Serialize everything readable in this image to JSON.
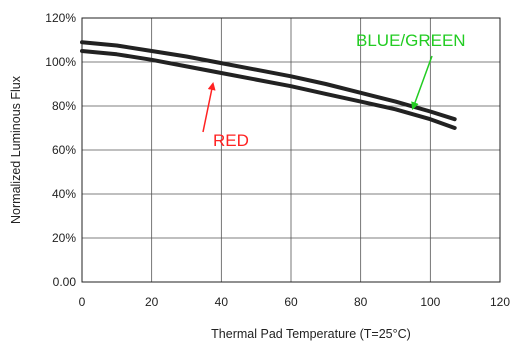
{
  "chart_data": {
    "type": "line",
    "xlabel": "Thermal Pad Temperature (T=25°C)",
    "ylabel": "Normalized Luminous Flux",
    "xlim": [
      0,
      120
    ],
    "ylim": [
      0,
      120
    ],
    "x_ticks": [
      "0",
      "20",
      "40",
      "60",
      "80",
      "100",
      "120"
    ],
    "y_ticks": [
      "0.00",
      "20%",
      "40%",
      "60%",
      "80%",
      "100%",
      "120%"
    ],
    "grid": true,
    "series": [
      {
        "name": "BLUE/GREEN",
        "color": "#222222",
        "x": [
          0,
          10,
          20,
          30,
          40,
          50,
          60,
          70,
          80,
          90,
          100,
          107
        ],
        "y": [
          109,
          107.5,
          105,
          102.5,
          99.5,
          96.5,
          93.5,
          90,
          86,
          82,
          77.5,
          74
        ]
      },
      {
        "name": "RED",
        "color": "#222222",
        "x": [
          0,
          10,
          20,
          30,
          40,
          50,
          60,
          70,
          80,
          90,
          100,
          107
        ],
        "y": [
          105,
          103.5,
          101,
          98,
          95,
          92,
          89,
          85.5,
          82,
          78.5,
          74,
          70
        ]
      }
    ],
    "annotations": [
      {
        "text": "BLUE/GREEN",
        "color": "#22cc22",
        "x": 95,
        "y": 79
      },
      {
        "text": "RED",
        "color": "#ff2222",
        "x": 37,
        "y": 90
      }
    ]
  }
}
